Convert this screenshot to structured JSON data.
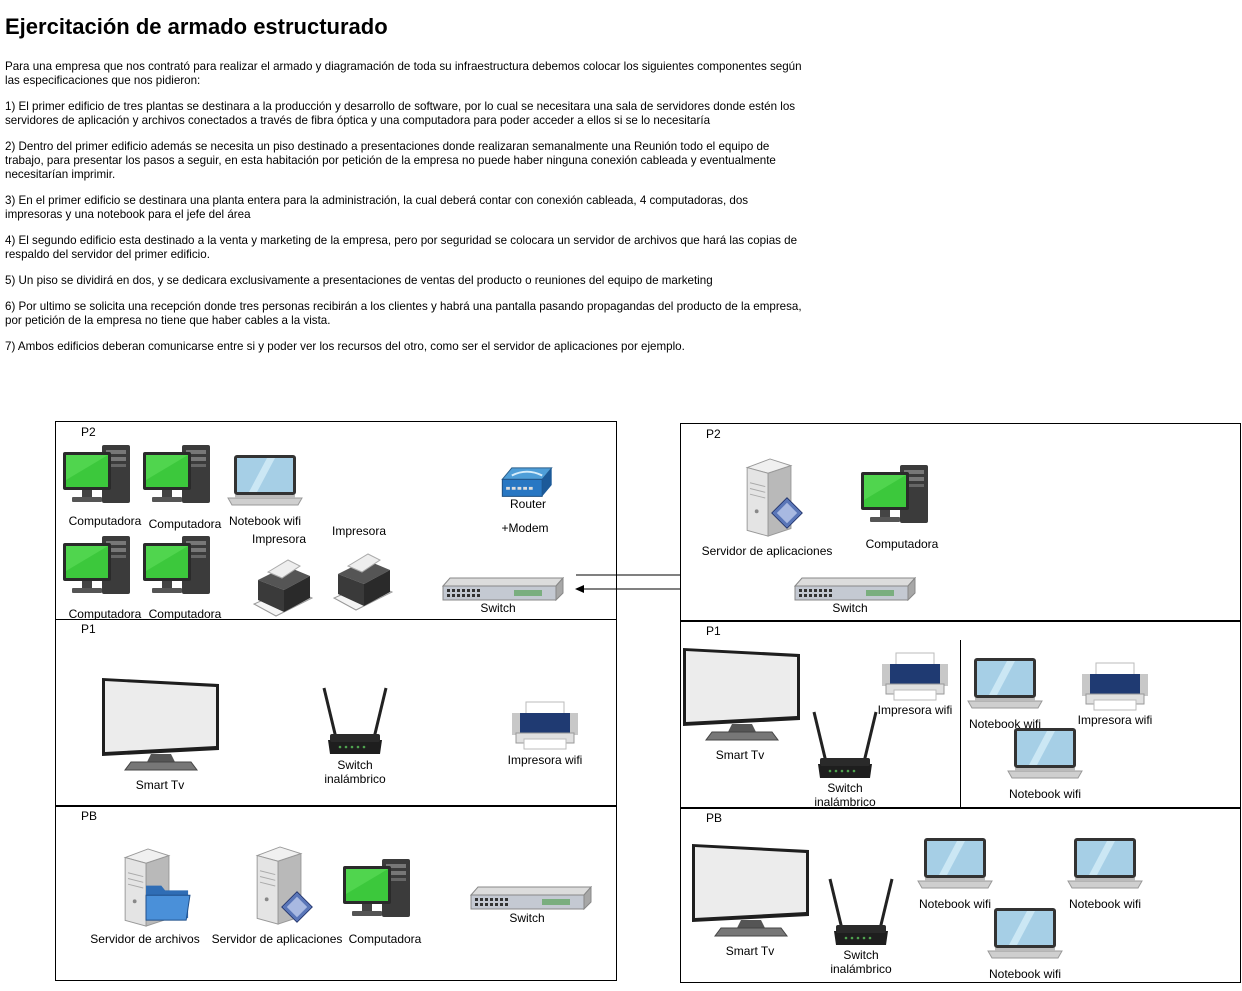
{
  "title": "Ejercitación de armado estructurado",
  "intro": "Para una empresa que  nos contrató para realizar el armado y diagramación de toda su infraestructura debemos colocar los siguientes componentes según las especificaciones que nos pidieron:",
  "requirements": [
    "1) El primer edificio de tres plantas se destinara a la producción y desarrollo de software, por lo cual se necesitara una sala de servidores donde estén los servidores de aplicación y archivos conectados a través de fibra óptica y una computadora para poder acceder a ellos si se lo necesitaría",
    "2) Dentro del primer edificio además se necesita un piso destinado a presentaciones donde realizaran semanalmente una Reunión todo el equipo de trabajo, para presentar los pasos a seguir, en esta habitación por petición de la empresa no puede haber ninguna conexión cableada y eventualmente necesitarían imprimir.",
    "3) En el primer edificio se destinara una planta entera para la administración, la cual deberá contar con conexión cableada, 4 computadoras, dos impresoras y una notebook para el jefe del área",
    "4) El segundo edificio esta destinado a la venta y marketing de la empresa, pero por seguridad se colocara un servidor de archivos que hará las copias de respaldo del servidor del primer edificio.",
    "5) Un piso se dividirá en dos, y se dedicara exclusivamente a presentaciones de ventas del producto o reuniones del equipo de marketing",
    "6) Por ultimo se solicita una recepción donde tres personas recibirán a los clientes y habrá una pantalla pasando propagandas del producto de la empresa, por petición de la empresa no tiene que haber cables a la vista.",
    "7) Ambos edificios deberan comunicarse entre si y poder ver los recursos del otro, como ser el servidor de aplicaciones por ejemplo."
  ],
  "b1": {
    "p2": {
      "header": "P2",
      "pc1": "Computadora",
      "pc2": "Computadora",
      "pc3": "Computadora",
      "pc4": "Computadora",
      "notebook": "Notebook wifi",
      "printer1": "Impresora",
      "printer2": "Impresora",
      "router": "Router",
      "modem": "+Modem",
      "switch": "Switch"
    },
    "p1": {
      "header": "P1",
      "tv": "Smart Tv",
      "wswitch": "Switch\ninalámbrico",
      "printer": "Impresora wifi"
    },
    "pb": {
      "header": "PB",
      "fileserver": "Servidor de archivos",
      "appserver": "Servidor de aplicaciones",
      "pc": "Computadora",
      "switch": "Switch"
    }
  },
  "b2": {
    "p2": {
      "header": "P2",
      "appserver": "Servidor de aplicaciones",
      "pc": "Computadora",
      "switch": "Switch"
    },
    "p1": {
      "header": "P1",
      "tv": "Smart Tv",
      "printer1": "Impresora wifi",
      "wswitch": "Switch\ninalámbrico",
      "notebook1": "Notebook wifi",
      "printer2": "Impresora wifi",
      "notebook2": "Notebook wifi"
    },
    "pb": {
      "header": "PB",
      "tv": "Smart Tv",
      "wswitch": "Switch\ninalámbrico",
      "notebook1": "Notebook wifi",
      "notebook2": "Notebook wifi",
      "notebook3": "Notebook wifi"
    }
  }
}
